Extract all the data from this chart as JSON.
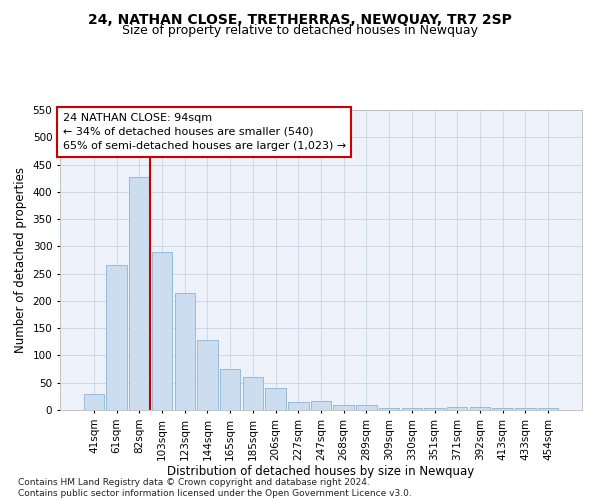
{
  "title": "24, NATHAN CLOSE, TRETHERRAS, NEWQUAY, TR7 2SP",
  "subtitle": "Size of property relative to detached houses in Newquay",
  "xlabel": "Distribution of detached houses by size in Newquay",
  "ylabel": "Number of detached properties",
  "footer_line1": "Contains HM Land Registry data © Crown copyright and database right 2024.",
  "footer_line2": "Contains public sector information licensed under the Open Government Licence v3.0.",
  "categories": [
    "41sqm",
    "61sqm",
    "82sqm",
    "103sqm",
    "123sqm",
    "144sqm",
    "165sqm",
    "185sqm",
    "206sqm",
    "227sqm",
    "247sqm",
    "268sqm",
    "289sqm",
    "309sqm",
    "330sqm",
    "351sqm",
    "371sqm",
    "392sqm",
    "413sqm",
    "433sqm",
    "454sqm"
  ],
  "values": [
    30,
    265,
    428,
    290,
    215,
    128,
    76,
    60,
    40,
    14,
    17,
    10,
    10,
    3,
    3,
    3,
    5,
    5,
    3,
    3,
    3
  ],
  "bar_color": "#ccddf0",
  "bar_edge_color": "#8ab4d8",
  "grid_color": "#c8d4e4",
  "annotation_box_color": "#cc0000",
  "annotation_text": "24 NATHAN CLOSE: 94sqm\n← 34% of detached houses are smaller (540)\n65% of semi-detached houses are larger (1,023) →",
  "vline_color": "#cc0000",
  "ylim": [
    0,
    550
  ],
  "yticks": [
    0,
    50,
    100,
    150,
    200,
    250,
    300,
    350,
    400,
    450,
    500,
    550
  ],
  "bg_color": "#edf2fa",
  "title_fontsize": 10,
  "subtitle_fontsize": 9,
  "annotation_fontsize": 8,
  "tick_fontsize": 7.5,
  "xlabel_fontsize": 8.5,
  "ylabel_fontsize": 8.5,
  "footer_fontsize": 6.5
}
